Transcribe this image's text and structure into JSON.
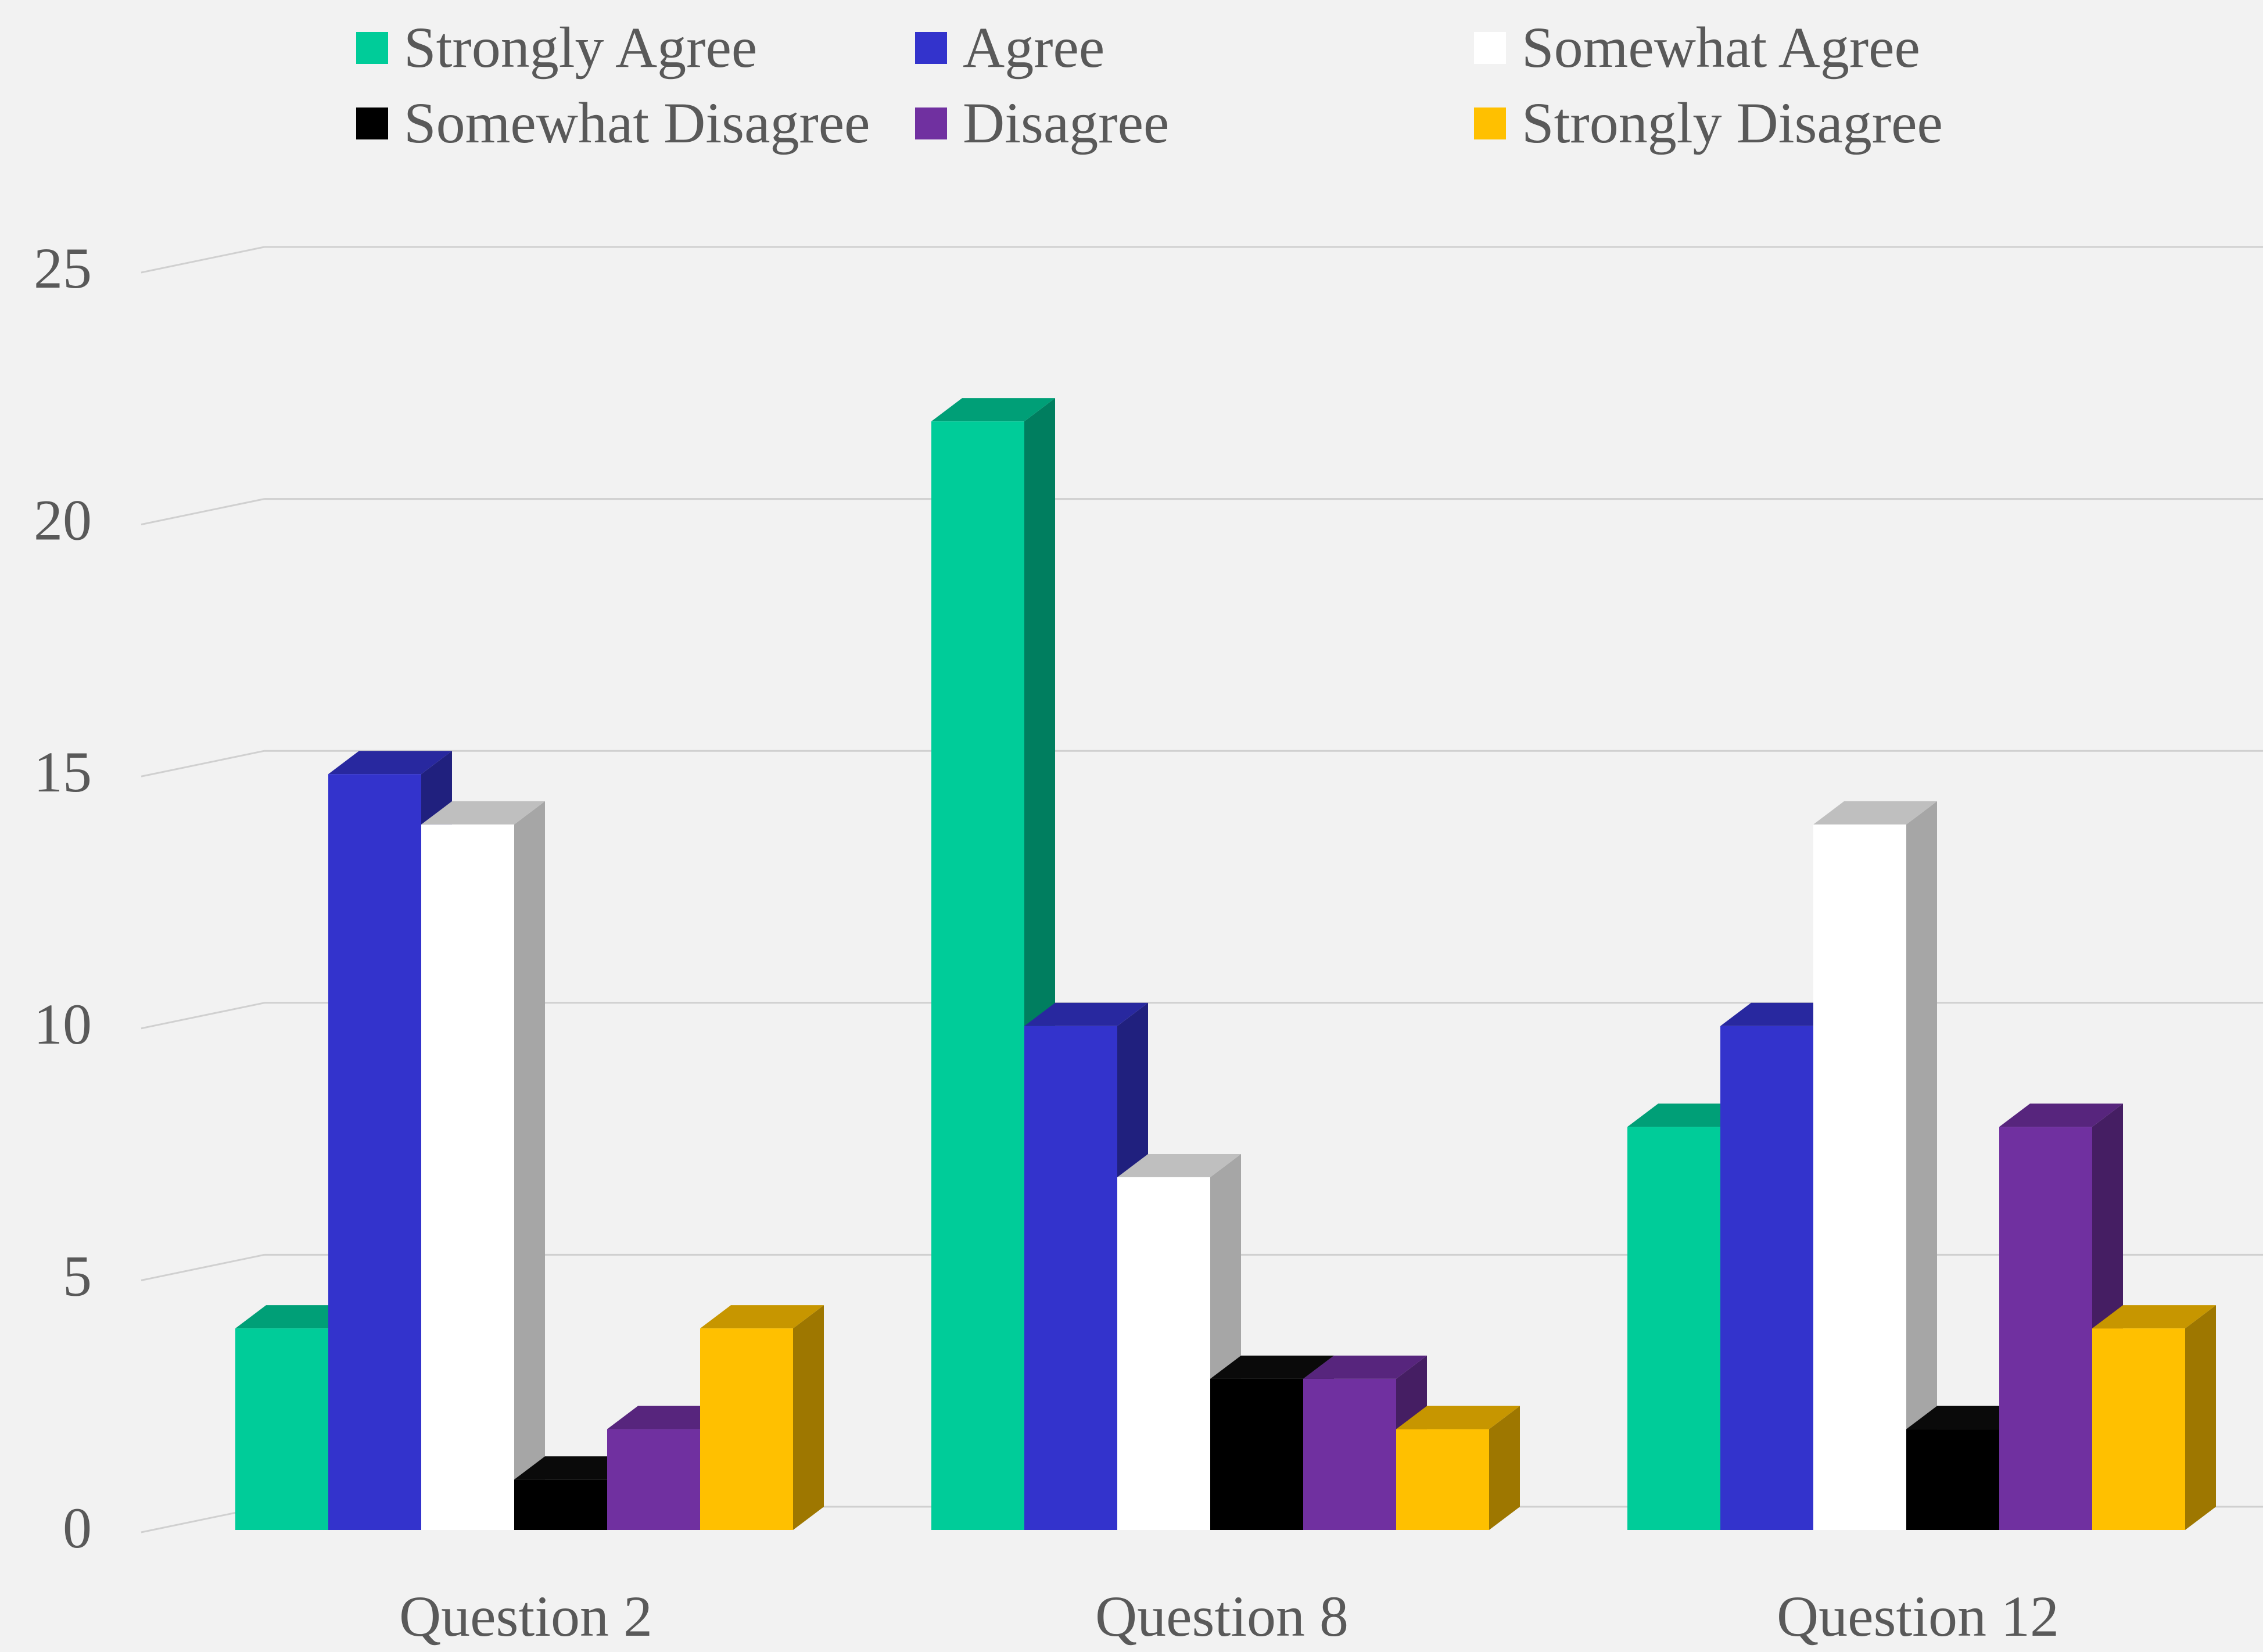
{
  "chart_data": {
    "type": "bar",
    "style": "3d-clustered-column",
    "categories": [
      "Question 2",
      "Question 8",
      "Question 12"
    ],
    "series": [
      {
        "name": "Strongly Agree",
        "color": "#00cc99",
        "values": [
          4,
          22,
          8
        ]
      },
      {
        "name": "Agree",
        "color": "#3333cc",
        "values": [
          15,
          10,
          10
        ]
      },
      {
        "name": "Somewhat Agree",
        "color": "#ffffff",
        "values": [
          14,
          7,
          14
        ]
      },
      {
        "name": "Somewhat Disagree",
        "color": "#000000",
        "values": [
          1,
          3,
          2
        ]
      },
      {
        "name": "Disagree",
        "color": "#7030a0",
        "values": [
          2,
          3,
          8
        ]
      },
      {
        "name": "Strongly Disagree",
        "color": "#ffc000",
        "values": [
          4,
          2,
          4
        ]
      }
    ],
    "ylim": [
      0,
      25
    ],
    "yticks": [
      "0",
      "5",
      "10",
      "15",
      "20",
      "25"
    ],
    "grid": true,
    "legend": "top"
  }
}
